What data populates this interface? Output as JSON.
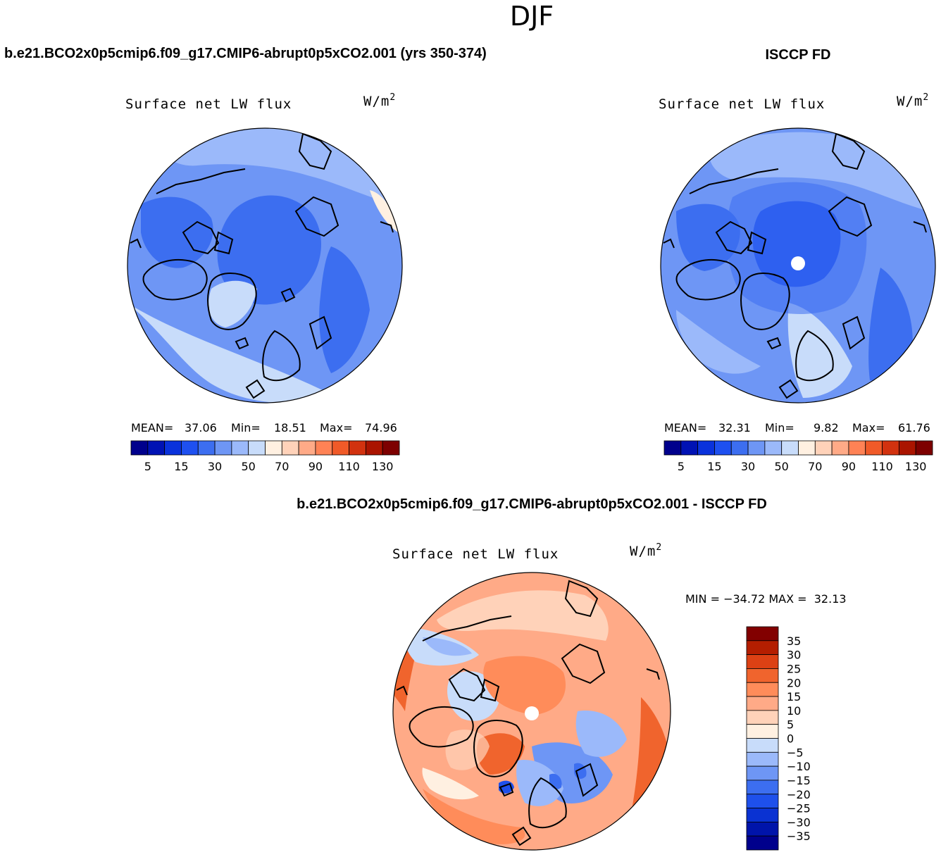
{
  "figure_title": "DJF",
  "chart_data": [
    {
      "type": "heatmap",
      "projection": "north polar stereographic",
      "title": "b.e21.BCO2x0p5cmip6.f09_g17.CMIP6-abrupt0p5xCO2.001 (yrs 350-374)",
      "variable": "Surface net LW flux",
      "units": "W/m",
      "units_exponent": "2",
      "stats": {
        "mean_label": "MEAN=",
        "mean": "37.06",
        "min_label": "Min=",
        "min": "18.51",
        "max_label": "Max=",
        "max": "74.96"
      },
      "colorbar": {
        "orientation": "horizontal",
        "levels": [
          0,
          5,
          10,
          15,
          20,
          30,
          40,
          50,
          60,
          70,
          80,
          90,
          100,
          110,
          120,
          130,
          140
        ],
        "tick_labels": [
          "5",
          "15",
          "30",
          "50",
          "70",
          "90",
          "110",
          "130"
        ]
      }
    },
    {
      "type": "heatmap",
      "projection": "north polar stereographic",
      "title": "ISCCP FD",
      "variable": "Surface net LW flux",
      "units": "W/m",
      "units_exponent": "2",
      "stats": {
        "mean_label": "MEAN=",
        "mean": "32.31",
        "min_label": "Min=",
        "min": "9.82",
        "max_label": "Max=",
        "max": "61.76"
      },
      "colorbar": {
        "orientation": "horizontal",
        "levels": [
          0,
          5,
          10,
          15,
          20,
          30,
          40,
          50,
          60,
          70,
          80,
          90,
          100,
          110,
          120,
          130,
          140
        ],
        "tick_labels": [
          "5",
          "15",
          "30",
          "50",
          "70",
          "90",
          "110",
          "130"
        ]
      }
    },
    {
      "type": "heatmap",
      "projection": "north polar stereographic",
      "title": "b.e21.BCO2x0p5cmip6.f09_g17.CMIP6-abrupt0p5xCO2.001 - ISCCP FD",
      "variable": "Surface net LW flux",
      "units": "W/m",
      "units_exponent": "2",
      "stats_text": "MIN = −34.72 MAX =  32.13",
      "colorbar": {
        "orientation": "vertical",
        "levels": [
          -40,
          -35,
          -30,
          -25,
          -20,
          -15,
          -10,
          -5,
          0,
          5,
          10,
          15,
          20,
          25,
          30,
          35,
          40
        ],
        "tick_labels": [
          "35",
          "30",
          "25",
          "20",
          "15",
          "10",
          "5",
          "0",
          "−5",
          "−10",
          "−15",
          "−20",
          "−25",
          "−30",
          "−35"
        ]
      }
    }
  ],
  "colors": {
    "flux_palette": [
      "#00008c",
      "#0012b4",
      "#0a32dc",
      "#1e50f0",
      "#3c6ef0",
      "#6e96f5",
      "#9bb9fa",
      "#c8dcfa",
      "#fff0e1",
      "#ffd2b9",
      "#ffaa87",
      "#ff8255",
      "#f05a28",
      "#d2320f",
      "#aa1400",
      "#7d0000"
    ],
    "diff_palette": [
      "#00008c",
      "#0014aa",
      "#0a32d2",
      "#1e50eb",
      "#3c6ef0",
      "#6e96f5",
      "#9bb9fa",
      "#c8dcfa",
      "#fff0e1",
      "#ffd2b9",
      "#ffaa87",
      "#ff8c5a",
      "#f0642d",
      "#dc4114",
      "#b41e00",
      "#820000"
    ],
    "missing_dot": "#ffffff",
    "coastline": "#000000"
  }
}
